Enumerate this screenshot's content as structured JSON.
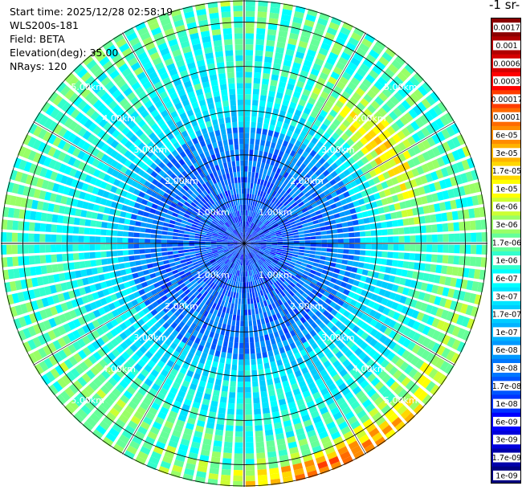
{
  "info": {
    "start_time": "Start time: 2025/12/28 02:58:19",
    "instrument": "WLS200s-181",
    "field": "Field: BETA",
    "elevation": "Elevation(deg): 35.00",
    "nrays": "NRays: 120"
  },
  "colorbar": {
    "unit_label": "-1 sr-",
    "labels": [
      "0.0017",
      "0.001",
      "0.0006",
      "0.0003",
      "0.00017",
      "0.0001",
      "6e-05",
      "3e-05",
      "1.7e-05",
      "1e-05",
      "6e-06",
      "3e-06",
      "1.7e-06",
      "1e-06",
      "6e-07",
      "3e-07",
      "1.7e-07",
      "1e-07",
      "6e-08",
      "3e-08",
      "1.7e-08",
      "1e-08",
      "6e-09",
      "3e-09",
      "1.7e-09",
      "1e-09"
    ],
    "colors": [
      "#8b0000",
      "#b00000",
      "#d40000",
      "#ff0000",
      "#ff3c00",
      "#ff6a00",
      "#ff8c00",
      "#ffb300",
      "#ffd700",
      "#ffff00",
      "#ccff33",
      "#99ff66",
      "#66ff99",
      "#33ffcc",
      "#00ffff",
      "#00e5ff",
      "#00ccff",
      "#00b2ff",
      "#0099ff",
      "#0077ff",
      "#0055ff",
      "#0033ff",
      "#0000ff",
      "#0000dd",
      "#0000aa",
      "#000080"
    ]
  },
  "chart_data": {
    "type": "heatmap",
    "projection": "polar PPI",
    "title": "",
    "nrays": 120,
    "range_rings_km": [
      1,
      2,
      3,
      4,
      5
    ],
    "range_labels": [
      "1.00km",
      "2.00km",
      "3.00km",
      "4.00km",
      "5.00km"
    ],
    "max_range_km": 5.5,
    "grid": true,
    "colormap": "jet-like, log scale",
    "vmin": 1e-09,
    "vmax": 0.0017,
    "features": [
      {
        "description": "near range low backscatter",
        "range_km": [
          0,
          2.5
        ],
        "value": 1e-08
      },
      {
        "description": "enhanced band north-east",
        "azimuth_deg": [
          20,
          90
        ],
        "range_km": [
          3.3,
          4.3
        ],
        "value": 1.7e-05
      },
      {
        "description": "enhanced band east",
        "azimuth_deg": [
          90,
          160
        ],
        "range_km": [
          4.5,
          5.4
        ],
        "value": 3e-06
      },
      {
        "description": "high band south-east rim",
        "azimuth_deg": [
          130,
          185
        ],
        "range_km": [
          5.2,
          5.5
        ],
        "value": 0.0001
      },
      {
        "description": "enhanced band south-west",
        "azimuth_deg": [
          200,
          240
        ],
        "range_km": [
          4.2,
          5.2
        ],
        "value": 3e-06
      }
    ]
  }
}
